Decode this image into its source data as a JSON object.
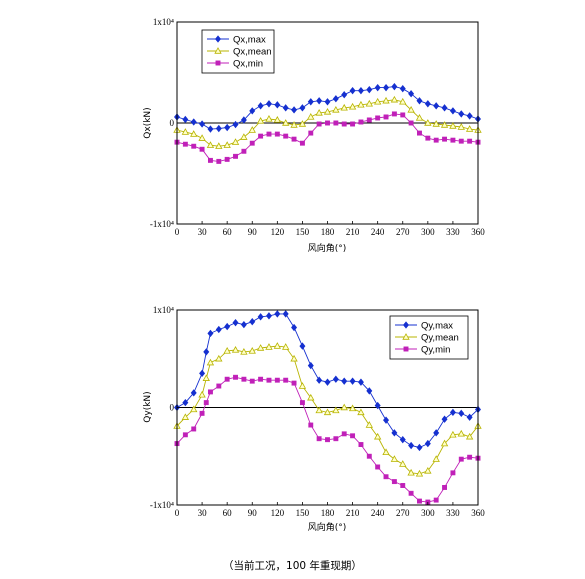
{
  "caption": "（当前工况，100 年重现期）",
  "colors": {
    "max": "#1530d0",
    "mean": "#b8b400",
    "min": "#c020b8",
    "axis": "#000000"
  },
  "chart_data": [
    {
      "type": "line",
      "title": "",
      "xlabel": "风向角(°)",
      "ylabel": "Qx(kN)",
      "xlim": [
        0,
        360
      ],
      "ylim": [
        -10000,
        10000
      ],
      "x_ticks": [
        "0",
        "30",
        "60",
        "90",
        "120",
        "150",
        "180",
        "210",
        "240",
        "270",
        "300",
        "330",
        "360"
      ],
      "y_ticks": [
        "-1x10⁴",
        "0",
        "1x10⁴"
      ],
      "legend": "top-left",
      "x": [
        0,
        10,
        20,
        30,
        40,
        50,
        60,
        70,
        80,
        90,
        100,
        110,
        120,
        130,
        140,
        150,
        160,
        170,
        180,
        190,
        200,
        210,
        220,
        230,
        240,
        250,
        260,
        270,
        280,
        290,
        300,
        310,
        320,
        330,
        340,
        350,
        360
      ],
      "series": [
        {
          "name": "Qx,max",
          "marker": "diamond",
          "color": "max",
          "values": [
            600,
            350,
            100,
            -100,
            -600,
            -550,
            -450,
            -150,
            300,
            1200,
            1700,
            1900,
            1800,
            1500,
            1300,
            1500,
            2100,
            2200,
            2100,
            2400,
            2800,
            3200,
            3200,
            3300,
            3500,
            3500,
            3600,
            3400,
            2900,
            2200,
            1900,
            1700,
            1500,
            1200,
            900,
            700,
            400
          ]
        },
        {
          "name": "Qx,mean",
          "marker": "triangle",
          "color": "mean",
          "values": [
            -700,
            -900,
            -1100,
            -1500,
            -2200,
            -2300,
            -2200,
            -1900,
            -1400,
            -700,
            200,
            400,
            300,
            0,
            -200,
            -100,
            600,
            1000,
            1100,
            1300,
            1500,
            1600,
            1800,
            1900,
            2100,
            2200,
            2300,
            2100,
            1300,
            500,
            0,
            -100,
            -200,
            -300,
            -400,
            -600,
            -700
          ]
        },
        {
          "name": "Qx,min",
          "marker": "square",
          "color": "min",
          "values": [
            -1900,
            -2100,
            -2300,
            -2600,
            -3700,
            -3800,
            -3600,
            -3300,
            -2800,
            -2000,
            -1300,
            -1100,
            -1100,
            -1300,
            -1600,
            -2000,
            -1000,
            -100,
            0,
            0,
            -100,
            -100,
            100,
            300,
            500,
            600,
            900,
            800,
            0,
            -1000,
            -1500,
            -1700,
            -1600,
            -1700,
            -1800,
            -1800,
            -1900
          ]
        }
      ]
    },
    {
      "type": "line",
      "title": "",
      "xlabel": "风向角(°)",
      "ylabel": "Qy(kN)",
      "xlim": [
        0,
        360
      ],
      "ylim": [
        -10000,
        10000
      ],
      "x_ticks": [
        "0",
        "30",
        "60",
        "90",
        "120",
        "150",
        "180",
        "210",
        "240",
        "270",
        "300",
        "330",
        "360"
      ],
      "y_ticks": [
        "-1x10⁴",
        "0",
        "1x10⁴"
      ],
      "legend": "top-right",
      "x": [
        0,
        10,
        20,
        30,
        35,
        40,
        50,
        60,
        70,
        80,
        90,
        100,
        110,
        120,
        130,
        140,
        150,
        160,
        170,
        180,
        190,
        200,
        210,
        220,
        230,
        240,
        250,
        260,
        270,
        280,
        290,
        300,
        310,
        320,
        330,
        340,
        350,
        360
      ],
      "series": [
        {
          "name": "Qy,max",
          "marker": "diamond",
          "color": "max",
          "values": [
            0,
            500,
            1500,
            3500,
            5700,
            7600,
            8000,
            8300,
            8700,
            8500,
            8800,
            9300,
            9400,
            9600,
            9600,
            8200,
            6300,
            4300,
            2800,
            2600,
            2900,
            2700,
            2700,
            2600,
            1700,
            200,
            -1300,
            -2600,
            -3300,
            -3900,
            -4100,
            -3700,
            -2600,
            -1200,
            -500,
            -600,
            -1000,
            -200
          ]
        },
        {
          "name": "Qy,mean",
          "marker": "triangle",
          "color": "mean",
          "values": [
            -1900,
            -1000,
            -200,
            1300,
            3000,
            4600,
            5000,
            5800,
            5900,
            5700,
            5800,
            6100,
            6200,
            6300,
            6200,
            5000,
            2200,
            1000,
            -300,
            -500,
            -300,
            0,
            -100,
            -500,
            -1800,
            -3000,
            -4600,
            -5300,
            -5800,
            -6700,
            -6800,
            -6500,
            -5300,
            -3700,
            -2800,
            -2700,
            -3000,
            -1900
          ]
        },
        {
          "name": "Qy,min",
          "marker": "square",
          "color": "min",
          "values": [
            -3700,
            -2800,
            -2200,
            -600,
            500,
            1600,
            2200,
            2900,
            3100,
            2900,
            2700,
            2900,
            2800,
            2800,
            2800,
            2500,
            500,
            -1800,
            -3200,
            -3300,
            -3200,
            -2700,
            -2900,
            -3800,
            -5000,
            -6100,
            -7100,
            -7600,
            -8000,
            -8800,
            -9600,
            -9700,
            -9500,
            -8200,
            -6700,
            -5300,
            -5100,
            -5200
          ]
        }
      ]
    }
  ]
}
